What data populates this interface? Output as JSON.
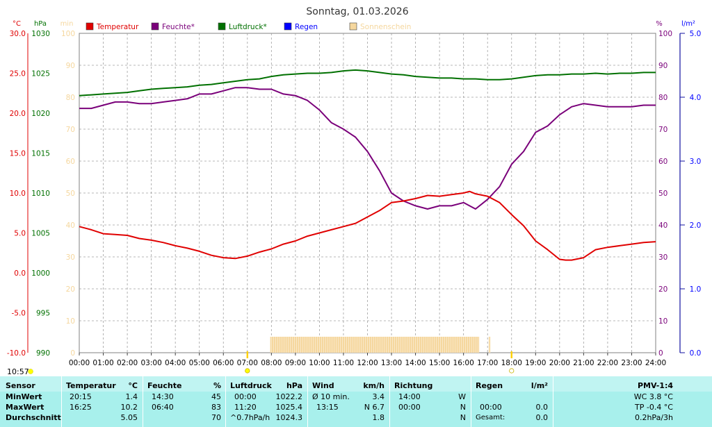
{
  "title": "Sonntag, 01.03.2026",
  "time_now": "10:57",
  "colors": {
    "temperature": "#e00000",
    "humidity": "#7a007a",
    "pressure": "#007000",
    "rain": "#0000ff",
    "sun": "#f5d79e",
    "footer_bg": "#a8f0ec"
  },
  "axis_units": {
    "temperature": "°C",
    "pressure": "hPa",
    "sun": "min",
    "humidity": "%",
    "rain": "l/m²"
  },
  "legend": [
    {
      "label": "Temperatur",
      "color": "#e00000"
    },
    {
      "label": "Feuchte*",
      "color": "#7a007a"
    },
    {
      "label": "Luftdruck*",
      "color": "#007000"
    },
    {
      "label": "Regen",
      "color": "#0000ff"
    },
    {
      "label": "Sonnenschein",
      "color": "#f5d79e"
    }
  ],
  "chart_data": {
    "type": "line",
    "title": "Sonntag, 01.03.2026",
    "x_unit": "hours",
    "x_ticks": [
      "00:00",
      "01:00",
      "02:00",
      "03:00",
      "04:00",
      "05:00",
      "06:00",
      "07:00",
      "08:00",
      "09:00",
      "10:00",
      "11:00",
      "12:00",
      "13:00",
      "14:00",
      "15:00",
      "16:00",
      "17:00",
      "18:00",
      "19:00",
      "20:00",
      "21:00",
      "22:00",
      "23:00",
      "24:00"
    ],
    "axes": {
      "temperature": {
        "range": [
          -10,
          30
        ],
        "ticks": [
          "30.0",
          "25.0",
          "20.0",
          "15.0",
          "10.0",
          "5.0",
          "0.0",
          "-5.0",
          "-10.0"
        ]
      },
      "pressure": {
        "range": [
          990,
          1030
        ],
        "ticks": [
          "1030",
          "1025",
          "1020",
          "1015",
          "1010",
          "1005",
          "1000",
          "995",
          "990"
        ]
      },
      "sun": {
        "range": [
          0,
          100
        ],
        "ticks": [
          "100",
          "90",
          "80",
          "70",
          "60",
          "50",
          "40",
          "30",
          "20",
          "10",
          "0"
        ]
      },
      "humidity": {
        "range": [
          0,
          100
        ],
        "ticks": [
          "100",
          "90",
          "80",
          "70",
          "60",
          "50",
          "40",
          "30",
          "20",
          "10",
          "0"
        ]
      },
      "rain": {
        "range": [
          0,
          5
        ],
        "ticks": [
          "5.0",
          "4.0",
          "3.0",
          "2.0",
          "1.0",
          "0.0"
        ]
      }
    },
    "series": [
      {
        "name": "Temperatur",
        "axis": "temperature",
        "x": [
          0,
          0.5,
          1,
          1.5,
          2,
          2.5,
          3,
          3.5,
          4,
          4.5,
          5,
          5.5,
          6,
          6.5,
          7,
          7.5,
          8,
          8.5,
          9,
          9.5,
          10,
          10.5,
          11,
          11.5,
          12,
          12.5,
          13,
          13.5,
          14,
          14.5,
          15,
          15.5,
          16,
          16.25,
          16.5,
          17,
          17.5,
          18,
          18.5,
          19,
          19.5,
          20,
          20.25,
          20.5,
          21,
          21.5,
          22,
          22.5,
          23,
          23.5,
          24
        ],
        "y": [
          5.8,
          5.4,
          4.9,
          4.8,
          4.7,
          4.3,
          4.1,
          3.8,
          3.4,
          3.1,
          2.7,
          2.2,
          1.9,
          1.8,
          2.1,
          2.6,
          3.0,
          3.6,
          4.0,
          4.6,
          5.0,
          5.4,
          5.8,
          6.2,
          7.0,
          7.8,
          8.8,
          9.0,
          9.3,
          9.7,
          9.6,
          9.8,
          10.0,
          10.2,
          9.9,
          9.6,
          8.8,
          7.3,
          5.9,
          4.0,
          2.9,
          1.7,
          1.6,
          1.6,
          1.9,
          2.9,
          3.2,
          3.4,
          3.6,
          3.8,
          3.9
        ]
      },
      {
        "name": "Feuchte*",
        "axis": "humidity",
        "x": [
          0,
          0.5,
          1,
          1.5,
          2,
          2.5,
          3,
          3.5,
          4,
          4.5,
          5,
          5.5,
          6,
          6.5,
          7,
          7.5,
          8,
          8.5,
          9,
          9.5,
          10,
          10.5,
          11,
          11.5,
          12,
          12.5,
          13,
          13.5,
          14,
          14.5,
          15,
          15.5,
          16,
          16.5,
          17,
          17.5,
          18,
          18.5,
          19,
          19.5,
          20,
          20.5,
          21,
          21.5,
          22,
          22.5,
          23,
          23.5,
          24
        ],
        "y": [
          76.5,
          76.5,
          77.5,
          78.5,
          78.5,
          78,
          78,
          78.5,
          79,
          79.5,
          81,
          81,
          82,
          83,
          83,
          82.5,
          82.5,
          81,
          80.5,
          79,
          76,
          72,
          70,
          67.5,
          63,
          57,
          50,
          47.5,
          46,
          45,
          46,
          46,
          47,
          45,
          48,
          52,
          59,
          63,
          69,
          71,
          74.5,
          77,
          78,
          77.5,
          77,
          77,
          77,
          77.5,
          77.5
        ]
      },
      {
        "name": "Luftdruck*",
        "axis": "pressure",
        "x": [
          0,
          0.5,
          1,
          1.5,
          2,
          2.5,
          3,
          3.5,
          4,
          4.5,
          5,
          5.5,
          6,
          6.5,
          7,
          7.5,
          8,
          8.5,
          9,
          9.5,
          10,
          10.5,
          11,
          11.5,
          12,
          12.5,
          13,
          13.5,
          14,
          14.5,
          15,
          15.5,
          16,
          16.5,
          17,
          17.5,
          18,
          18.5,
          19,
          19.5,
          20,
          20.5,
          21,
          21.5,
          22,
          22.5,
          23,
          23.5,
          24
        ],
        "y": [
          1022.2,
          1022.3,
          1022.4,
          1022.5,
          1022.6,
          1022.8,
          1023.0,
          1023.1,
          1023.2,
          1023.3,
          1023.5,
          1023.6,
          1023.8,
          1024.0,
          1024.2,
          1024.3,
          1024.6,
          1024.8,
          1024.9,
          1025.0,
          1025.0,
          1025.1,
          1025.3,
          1025.4,
          1025.3,
          1025.1,
          1024.9,
          1024.8,
          1024.6,
          1024.5,
          1024.4,
          1024.4,
          1024.3,
          1024.3,
          1024.2,
          1024.2,
          1024.3,
          1024.5,
          1024.7,
          1024.8,
          1024.8,
          1024.9,
          1024.9,
          1025.0,
          1024.9,
          1025.0,
          1025.0,
          1025.1,
          1025.1
        ]
      },
      {
        "name": "Regen",
        "axis": "rain",
        "x": [],
        "y": []
      },
      {
        "name": "Sonnenschein",
        "axis": "sun",
        "bars": [
          [
            7.95,
            16.65,
            5
          ],
          [
            17.05,
            17.12,
            5
          ]
        ]
      }
    ],
    "markers": [
      {
        "x": 7.0,
        "type": "sunrise"
      },
      {
        "x": 18.0,
        "type": "sunset"
      }
    ],
    "grid": true,
    "legend_position": "top"
  },
  "footer": {
    "row_labels": [
      "Sensor",
      "MinWert",
      "MaxWert",
      "Durchschnitt"
    ],
    "temperature": {
      "header": "Temperatur",
      "unit": "°C",
      "rows": [
        {
          "time": "20:15",
          "value": "1.4"
        },
        {
          "time": "16:25",
          "value": "10.2"
        },
        {
          "time": "",
          "value": "5.05"
        }
      ]
    },
    "humidity": {
      "header": "Feuchte",
      "unit": "%",
      "rows": [
        {
          "time": "14:30",
          "value": "45"
        },
        {
          "time": "06:40",
          "value": "83"
        },
        {
          "time": "",
          "value": "70"
        }
      ]
    },
    "pressure": {
      "header": "Luftdruck",
      "unit": "hPa",
      "rows": [
        {
          "time": "00:00",
          "value": "1022.2"
        },
        {
          "time": "11:20",
          "value": "1025.4"
        },
        {
          "time": "^0.7hPa/h",
          "value": "1024.3"
        }
      ]
    },
    "wind": {
      "header": "Wind",
      "unit": "km/h",
      "rows": [
        {
          "time": "Ø 10 min.",
          "value": "3.4"
        },
        {
          "time": "13:15",
          "value": "N 6.7"
        },
        {
          "time": "",
          "value": "1.8"
        }
      ]
    },
    "direction": {
      "header": "Richtung",
      "rows": [
        {
          "time": "14:00",
          "value": "W"
        },
        {
          "time": "00:00",
          "value": "N"
        },
        {
          "time": "",
          "value": "N"
        }
      ]
    },
    "rain": {
      "header": "Regen",
      "unit": "l/m²",
      "rows": [
        {
          "time": "",
          "value": ""
        },
        {
          "time": "00:00",
          "value": "0.0"
        },
        {
          "time": "Gesamt:",
          "value": "0.0"
        }
      ]
    },
    "pmv": {
      "header": "PMV-1:4",
      "rows": [
        "WC 3.8 °C",
        "TP -0.4 °C",
        "0.2hPa/3h"
      ]
    }
  }
}
